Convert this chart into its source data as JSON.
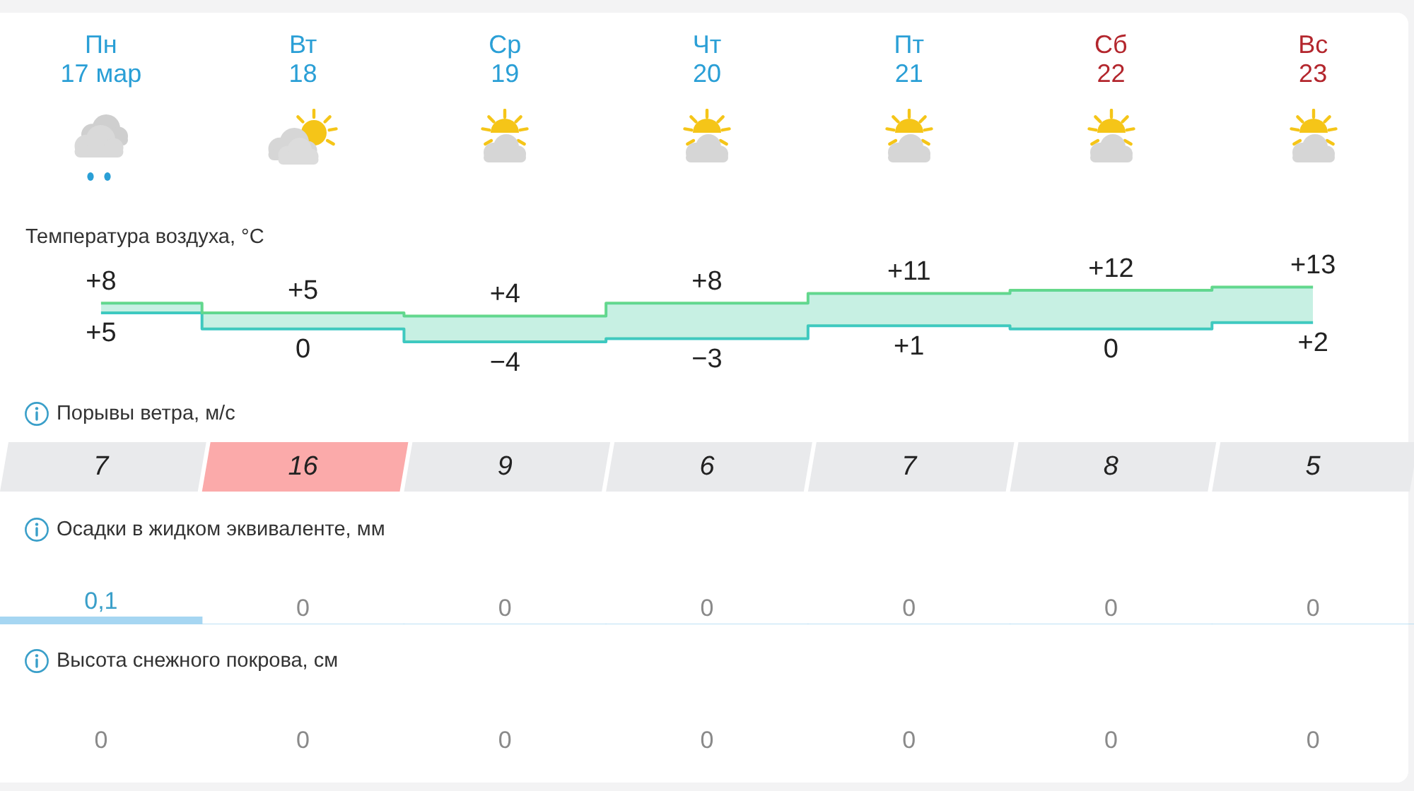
{
  "chart_data": [
    {
      "type": "step",
      "title": "Температура воздуха, °C",
      "categories": [
        "Пн\n17 мар",
        "Вт\n18",
        "Ср\n19",
        "Чт\n20",
        "Пт\n21",
        "Сб\n22",
        "Вс\n23"
      ],
      "series": [
        {
          "color": "#66d98a",
          "values": [
            8,
            5,
            4,
            8,
            11,
            12,
            13
          ],
          "lower": [
            5,
            0,
            -4,
            -3,
            1,
            0,
            2
          ],
          "upper": [
            8,
            5,
            4,
            8,
            11,
            12,
            13
          ],
          "value_labels": [
            "+8",
            "+5",
            "+4",
            "+8",
            "+11",
            "+12",
            "+13"
          ]
        },
        {
          "color": "#3cc8c4",
          "values": [
            5,
            0,
            -4,
            -3,
            1,
            0,
            2
          ],
          "value_labels": [
            "+5",
            "0",
            "−4",
            "−3",
            "+1",
            "0",
            "+2"
          ]
        }
      ]
    },
    {
      "type": "other",
      "title": "Порывы ветра, м/с",
      "categories": [
        null,
        null,
        null,
        null,
        null,
        null,
        null
      ],
      "values": [
        7,
        16,
        9,
        6,
        7,
        8,
        5
      ],
      "colors": [
        "#e9eaec",
        "#fbaaaa",
        "#e9eaec",
        "#e9eaec",
        "#e9eaec",
        "#e9eaec",
        "#e9eaec"
      ],
      "data_labels": true
    },
    {
      "type": "bar",
      "title": "Осадки в жидком эквиваленте, мм",
      "categories": [
        null,
        null,
        null,
        null,
        null,
        null,
        null
      ],
      "values": [
        0.1,
        0,
        0,
        0,
        0,
        0,
        0
      ],
      "value_labels": [
        "0,1",
        "0",
        "0",
        "0",
        "0",
        "0",
        "0"
      ],
      "color": "#a6d6f2"
    },
    {
      "type": "other",
      "title": "Высота снежного покрова, см",
      "categories": [
        null,
        null,
        null,
        null,
        null,
        null,
        null
      ],
      "values": [
        0,
        0,
        0,
        0,
        0,
        0,
        0
      ],
      "data_labels": true
    }
  ]
}
